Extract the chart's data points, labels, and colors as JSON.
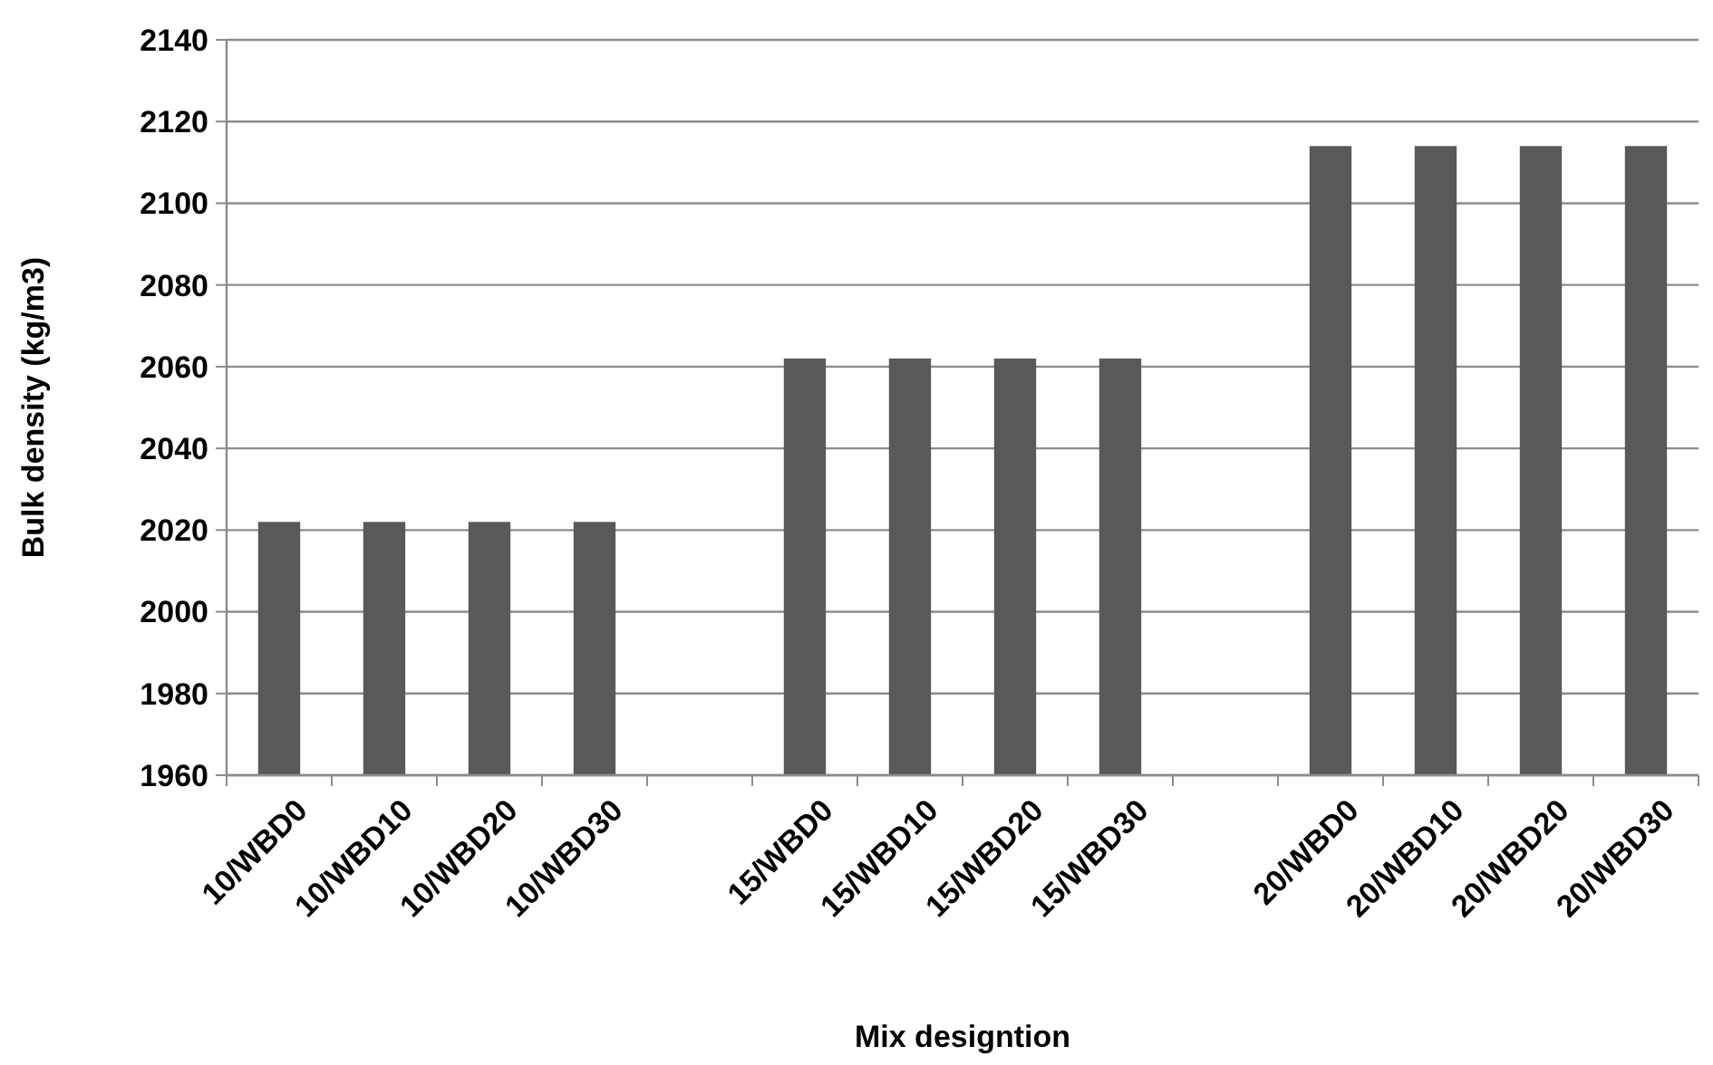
{
  "chart_data": {
    "type": "bar",
    "xlabel": "Mix designtion",
    "ylabel": "Bulk density (kg/m3)",
    "categories": [
      "10/WBD0",
      "10/WBD10",
      "10/WBD20",
      "10/WBD30",
      null,
      "15/WBD0",
      "15/WBD10",
      "15/WBD20",
      "15/WBD30",
      null,
      "20/WBD0",
      "20/WBD10",
      "20/WBD20",
      "20/WBD30"
    ],
    "values": [
      2022,
      2022,
      2022,
      2022,
      null,
      2062,
      2062,
      2062,
      2062,
      null,
      2114,
      2114,
      2114,
      2114
    ],
    "color": "#595959",
    "ylim": [
      1960,
      2140
    ],
    "yticks": [
      1960,
      1980,
      2000,
      2020,
      2040,
      2060,
      2080,
      2100,
      2120,
      2140
    ],
    "grid": "y"
  }
}
